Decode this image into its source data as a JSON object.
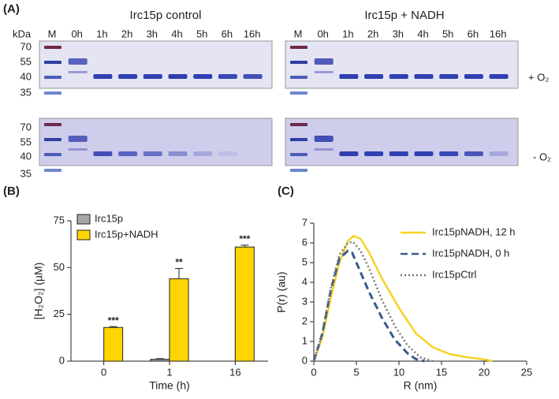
{
  "panels": {
    "a": "(A)",
    "b": "(B)",
    "c": "(C)"
  },
  "gels": {
    "kda": "kDa",
    "marker_weights": [
      "70",
      "55",
      "40",
      "35"
    ],
    "left_title": "Irc15p control",
    "right_title": "Irc15p + NADH",
    "lanes": [
      "M",
      "0h",
      "1h",
      "2h",
      "3h",
      "4h",
      "5h",
      "6h",
      "16h"
    ],
    "conditions": [
      "+ O₂",
      "- O₂"
    ]
  },
  "chart_data": [
    {
      "type": "bar",
      "ylabel": "[H₂O₂] (µM)",
      "xlabel": "Time (h)",
      "categories": [
        "0",
        "1",
        "16"
      ],
      "series": [
        {
          "name": "Irc15p",
          "color": "#a6a6a6",
          "values": [
            0,
            1,
            0
          ],
          "errors": [
            0,
            0.3,
            0
          ]
        },
        {
          "name": "Irc15p+NADH",
          "color": "#ffd500",
          "values": [
            18,
            44,
            61
          ],
          "errors": [
            0.5,
            5.5,
            1
          ]
        }
      ],
      "annotations": [
        "***",
        "**",
        "***"
      ],
      "ylim": [
        0,
        75
      ],
      "yticks": [
        0,
        25,
        50,
        75
      ]
    },
    {
      "type": "line",
      "ylabel": "P(r) (au)",
      "xlabel": "R (nm)",
      "series": [
        {
          "name": "Irc15pNADH, 12 h",
          "color": "#f5d327",
          "style": "solid",
          "x": [
            0,
            1,
            2,
            3,
            4,
            4.7,
            5.5,
            6.5,
            8,
            10,
            12,
            14,
            16,
            18,
            19.5,
            20.5,
            21
          ],
          "values": [
            0,
            1.2,
            3.2,
            5,
            6.1,
            6.35,
            6.2,
            5.5,
            4.2,
            2.7,
            1.4,
            0.7,
            0.35,
            0.2,
            0.12,
            0.05,
            0
          ]
        },
        {
          "name": "Irc15pNADH, 0 h",
          "color": "#3a5a8c",
          "style": "dashed",
          "x": [
            0,
            1,
            2,
            3,
            4,
            4.5,
            5.5,
            6.5,
            8,
            9.5,
            11,
            12,
            13
          ],
          "values": [
            0,
            1.4,
            3.6,
            5.2,
            5.6,
            5.5,
            4.5,
            3.5,
            2.2,
            1.1,
            0.4,
            0.1,
            0
          ]
        },
        {
          "name": "Irc15pCtrl",
          "color": "#777777",
          "style": "dotted",
          "x": [
            0,
            1,
            2,
            3,
            4,
            4.6,
            5.5,
            6.5,
            8,
            9.5,
            11,
            12.5,
            14
          ],
          "values": [
            0,
            1.4,
            3.7,
            5.4,
            6.0,
            6.05,
            5.6,
            4.7,
            3.1,
            1.8,
            0.8,
            0.2,
            0
          ]
        }
      ],
      "xlim": [
        0,
        25
      ],
      "xticks": [
        0,
        5,
        10,
        15,
        20,
        25
      ],
      "ylim": [
        0,
        7
      ],
      "yticks": [
        0,
        1,
        2,
        3,
        4,
        5,
        6,
        7
      ]
    }
  ]
}
